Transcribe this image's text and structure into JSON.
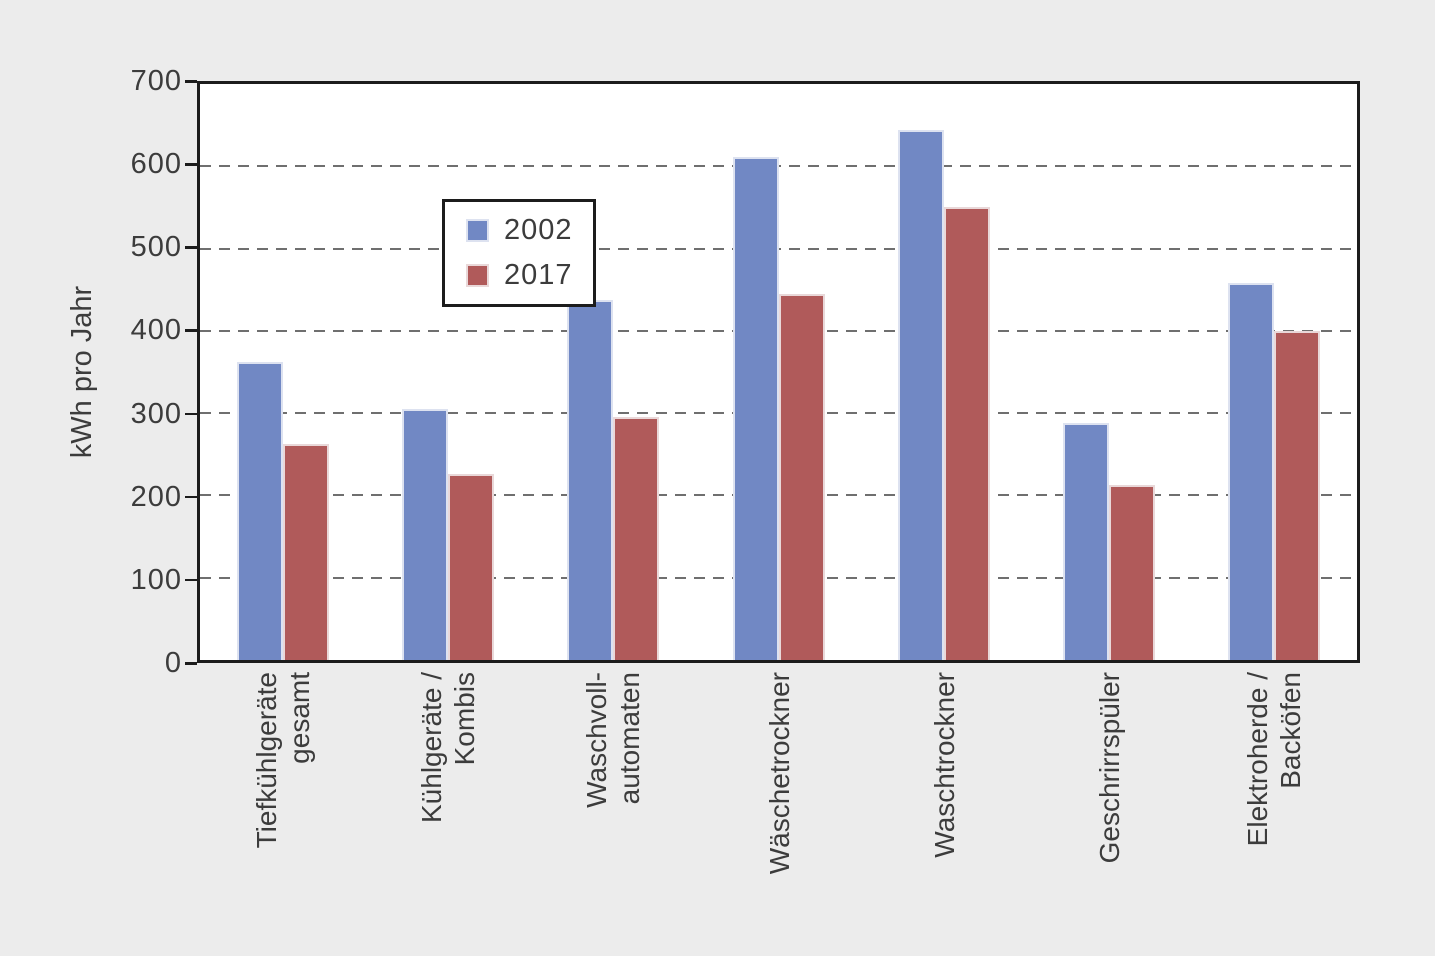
{
  "figure": {
    "background": "#ececec",
    "plot_background": "#ffffff",
    "frame_color": "#1c1c1c",
    "grid_color": "#6f6f6f",
    "text_color": "#3c3c3c"
  },
  "chart_data": {
    "type": "bar",
    "title": "",
    "xlabel": "",
    "ylabel": "kWh pro Jahr",
    "ylim": [
      0,
      700
    ],
    "yticks": [
      0,
      100,
      200,
      300,
      400,
      500,
      600,
      700
    ],
    "grid": "horizontal dashed gridlines every 100 kWh",
    "legend_position": "upper left inside plot",
    "categories": [
      "Tiefkühlgeräte gesamt",
      "Kühlgeräte / Kombis",
      "Waschvoll-automaten",
      "Wäschetrockner",
      "Waschtrockner",
      "Geschrirrspüler",
      "Elektroherde / Backöfen"
    ],
    "category_label_lines": [
      [
        "Tiefkühlgeräte",
        "gesamt"
      ],
      [
        "Kühlgeräte /",
        "Kombis"
      ],
      [
        "Waschvoll-",
        "automaten"
      ],
      [
        "Wäschetrockner"
      ],
      [
        "Waschtrockner"
      ],
      [
        "Geschrirrspüler"
      ],
      [
        "Elektroherde /",
        "Backöfen"
      ]
    ],
    "series": [
      {
        "name": "2002",
        "color": "#7188c4",
        "edge_color": "#dde2f0",
        "values": [
          362,
          305,
          437,
          611,
          644,
          288,
          458
        ]
      },
      {
        "name": "2017",
        "color": "#b05a5a",
        "edge_color": "#e9d8d9",
        "values": [
          263,
          226,
          295,
          445,
          550,
          213,
          400
        ]
      }
    ]
  }
}
